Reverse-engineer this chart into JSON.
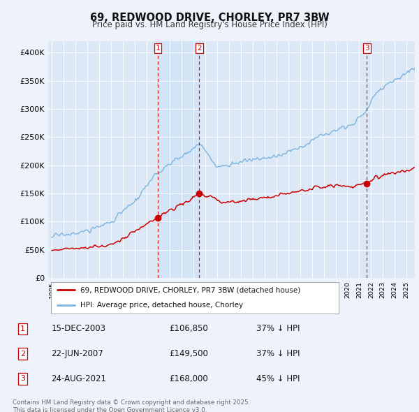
{
  "title": "69, REDWOOD DRIVE, CHORLEY, PR7 3BW",
  "subtitle": "Price paid vs. HM Land Registry's House Price Index (HPI)",
  "background_color": "#eef3fb",
  "plot_bg_color": "#dce8f5",
  "legend_entries": [
    "69, REDWOOD DRIVE, CHORLEY, PR7 3BW (detached house)",
    "HPI: Average price, detached house, Chorley"
  ],
  "transactions": [
    {
      "num": 1,
      "date": "15-DEC-2003",
      "price": 106850,
      "pct": "37%",
      "dir": "↓",
      "x_year": 2003.97
    },
    {
      "num": 2,
      "date": "22-JUN-2007",
      "price": 149500,
      "pct": "37%",
      "dir": "↓",
      "x_year": 2007.47
    },
    {
      "num": 3,
      "date": "24-AUG-2021",
      "price": 168000,
      "pct": "45%",
      "dir": "↓",
      "x_year": 2021.65
    }
  ],
  "footer": "Contains HM Land Registry data © Crown copyright and database right 2025.\nThis data is licensed under the Open Government Licence v3.0.",
  "hpi_color": "#7ab4e0",
  "price_color": "#cc0000",
  "marker_color": "#cc0000",
  "vline_color": "#cc0000",
  "shade_color": "#d0e4f5",
  "ylim": [
    0,
    420000
  ],
  "xlim_start": 1994.7,
  "xlim_end": 2025.7,
  "yticks": [
    0,
    50000,
    100000,
    150000,
    200000,
    250000,
    300000,
    350000,
    400000
  ],
  "ytick_labels": [
    "£0",
    "£50K",
    "£100K",
    "£150K",
    "£200K",
    "£250K",
    "£300K",
    "£350K",
    "£400K"
  ],
  "xtick_years": [
    1995,
    1996,
    1997,
    1998,
    1999,
    2000,
    2001,
    2002,
    2003,
    2004,
    2005,
    2006,
    2007,
    2008,
    2009,
    2010,
    2011,
    2012,
    2013,
    2014,
    2015,
    2016,
    2017,
    2018,
    2019,
    2020,
    2021,
    2022,
    2023,
    2024,
    2025
  ]
}
